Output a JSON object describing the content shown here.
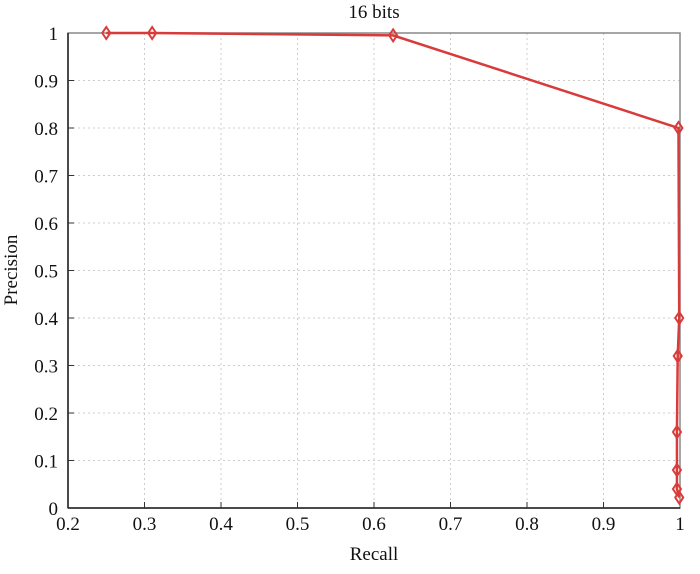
{
  "chart_data": {
    "type": "line",
    "title": "16 bits",
    "x_label": "Recall",
    "y_label": "Precision",
    "series": [
      {
        "name": "16 bits",
        "color": "#d93a3a",
        "x": [
          0.25,
          0.31,
          0.625,
          0.998,
          0.999,
          0.997,
          0.996,
          0.996,
          0.996,
          0.999
        ],
        "values": [
          1,
          1,
          0.995,
          0.8,
          0.4,
          0.32,
          0.16,
          0.08,
          0.04,
          0.022
        ]
      }
    ],
    "xlim": [
      0.2,
      1
    ],
    "ylim": [
      0,
      1
    ],
    "xticks": [
      0.2,
      0.3,
      0.4,
      0.5,
      0.6,
      0.7,
      0.8,
      0.9,
      1
    ],
    "yticks": [
      0,
      0.1,
      0.2,
      0.3,
      0.4,
      0.5,
      0.6,
      0.7,
      0.8,
      0.9,
      1
    ],
    "grid": true
  }
}
